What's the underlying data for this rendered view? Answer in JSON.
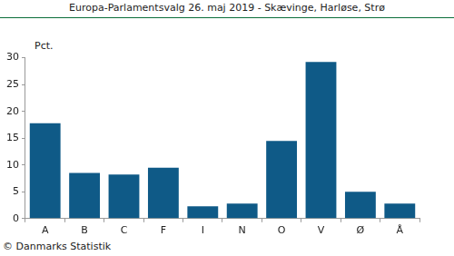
{
  "chart_data": {
    "type": "bar",
    "title": "Europa-Parlamentsvalg 26. maj 2019 - Skævinge, Harløse, Strø",
    "y_label": "Pct.",
    "footer": "© Danmarks Statistik",
    "categories": [
      "A",
      "B",
      "C",
      "F",
      "I",
      "N",
      "O",
      "V",
      "Ø",
      "Å"
    ],
    "values": [
      17.8,
      8.5,
      8.2,
      9.5,
      2.3,
      2.8,
      14.5,
      29.2,
      5.0,
      2.8
    ],
    "color": "#0f5a87",
    "ylim": [
      0,
      30
    ],
    "yticks": [
      0,
      5,
      10,
      15,
      20,
      25,
      30
    ],
    "grid": false
  }
}
